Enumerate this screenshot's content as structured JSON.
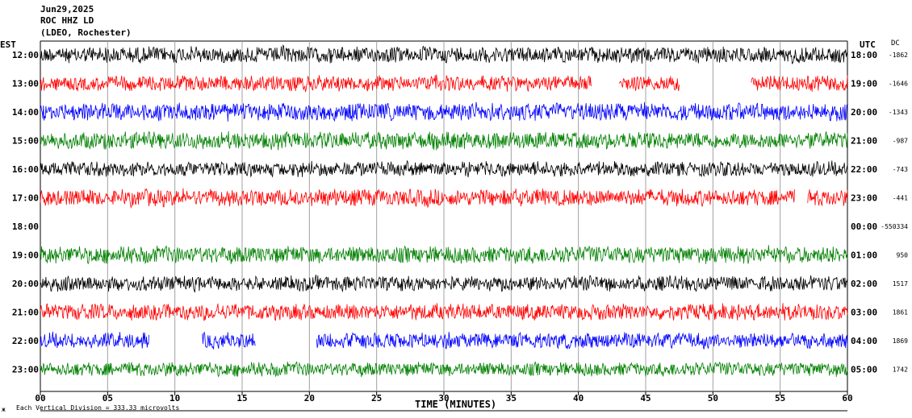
{
  "header": {
    "date": "Jun29,2025",
    "station": "ROC HHZ LD",
    "network": "(LDEO, Rochester)"
  },
  "left_zone": "EST",
  "right_zone": "UTC",
  "dc_header": "DC",
  "footer": {
    "scale_note": "Each Vertical Division = 333.33 microvolts",
    "corner_mark": "ж"
  },
  "chart_data": {
    "type": "line",
    "xlabel": "TIME (MINUTES)",
    "xlim": [
      0,
      60
    ],
    "x_ticks": [
      "00",
      "05",
      "10",
      "15",
      "20",
      "25",
      "30",
      "35",
      "40",
      "45",
      "50",
      "55",
      "60"
    ],
    "trace_color_cycle": [
      "#000000",
      "#ff0000",
      "#0000ff",
      "#008000"
    ],
    "rows": [
      {
        "est": "12:00",
        "utc": "18:00",
        "dc": "-1862",
        "color": "#000000",
        "gaps": []
      },
      {
        "est": "13:00",
        "utc": "19:00",
        "dc": "-1646",
        "color": "#ff0000",
        "gaps": [
          [
            41,
            43
          ],
          [
            47.5,
            52.8
          ]
        ]
      },
      {
        "est": "14:00",
        "utc": "20:00",
        "dc": "-1343",
        "color": "#0000ff",
        "gaps": []
      },
      {
        "est": "15:00",
        "utc": "21:00",
        "dc": "-987",
        "color": "#008000",
        "gaps": []
      },
      {
        "est": "16:00",
        "utc": "22:00",
        "dc": "-743",
        "color": "#000000",
        "gaps": []
      },
      {
        "est": "17:00",
        "utc": "23:00",
        "dc": "-441",
        "color": "#ff0000",
        "gaps": [
          [
            56.1,
            57
          ]
        ]
      },
      {
        "est": "18:00",
        "utc": "00:00",
        "dc": "-550334",
        "color": "#0000ff",
        "gaps": [
          [
            0,
            60
          ]
        ]
      },
      {
        "est": "19:00",
        "utc": "01:00",
        "dc": "950",
        "color": "#008000",
        "gaps": []
      },
      {
        "est": "20:00",
        "utc": "02:00",
        "dc": "1517",
        "color": "#000000",
        "gaps": []
      },
      {
        "est": "21:00",
        "utc": "03:00",
        "dc": "1861",
        "color": "#ff0000",
        "gaps": []
      },
      {
        "est": "22:00",
        "utc": "04:00",
        "dc": "1869",
        "color": "#0000ff",
        "gaps": [
          [
            8.1,
            12
          ],
          [
            16,
            20.5
          ]
        ]
      },
      {
        "est": "23:00",
        "utc": "05:00",
        "dc": "1742",
        "color": "#008000",
        "gaps": []
      }
    ]
  }
}
